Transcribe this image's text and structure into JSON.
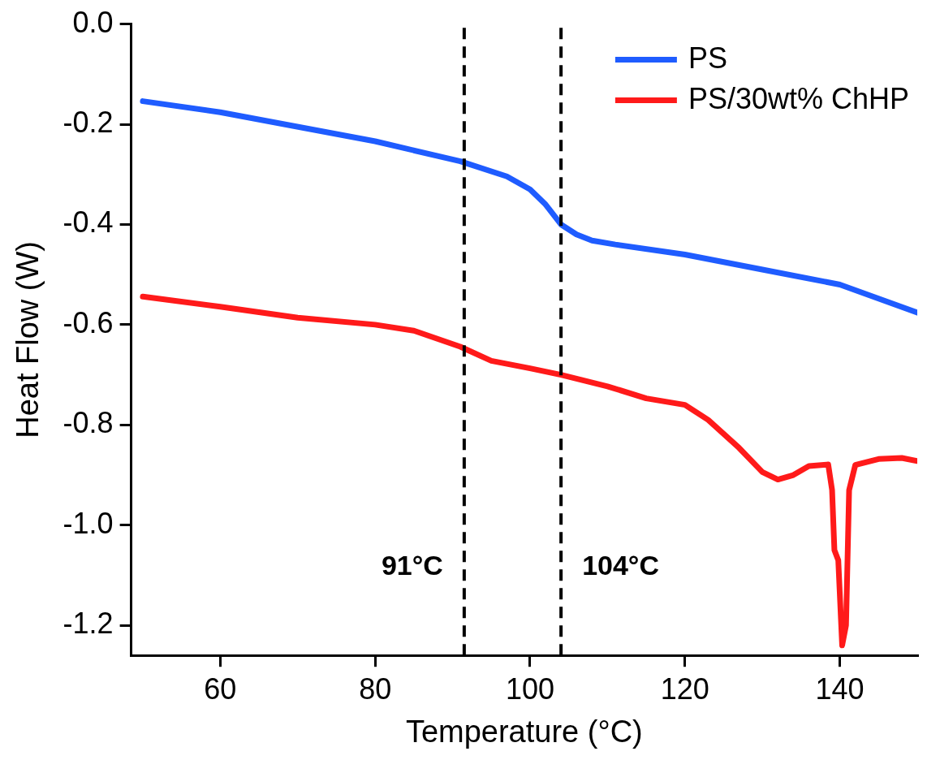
{
  "chart_data": {
    "type": "line",
    "xlabel": "Temperature (°C)",
    "ylabel": "Heat Flow (W)",
    "xlim": [
      48.5,
      150
    ],
    "xticks": [
      60,
      80,
      100,
      120,
      140
    ],
    "ylim": [
      -1.26,
      0
    ],
    "yticks": [
      {
        "value": 0,
        "label": "0.0"
      },
      {
        "value": -0.2,
        "label": "-0.2"
      },
      {
        "value": -0.4,
        "label": "-0.4"
      },
      {
        "value": -0.6,
        "label": "-0.6"
      },
      {
        "value": -0.8,
        "label": "-0.8"
      },
      {
        "value": -1.0,
        "label": "-1.0"
      },
      {
        "value": -1.2,
        "label": "-1.2"
      }
    ],
    "grid": false,
    "legend": "top right",
    "marker": "none",
    "line_style": "solid",
    "series": [
      {
        "name": "PS",
        "color": "#1f5cff",
        "x": [
          50,
          60,
          80,
          91,
          97,
          100,
          102,
          104,
          106,
          108,
          111,
          120,
          130,
          140,
          150
        ],
        "values": [
          -0.154,
          -0.176,
          -0.234,
          -0.274,
          -0.304,
          -0.33,
          -0.36,
          -0.4,
          -0.42,
          -0.432,
          -0.44,
          -0.46,
          -0.49,
          -0.52,
          -0.576
        ]
      },
      {
        "name": "PS/30wt% ChHP",
        "color": "#ff1a1a",
        "x": [
          50,
          60,
          70,
          80,
          85,
          91,
          95,
          100,
          104,
          110,
          115,
          120,
          123,
          127,
          130,
          132,
          134,
          136,
          138.5,
          139,
          139.3,
          139.8,
          140.3,
          140.8,
          141.2,
          142,
          145,
          148,
          150
        ],
        "values": [
          -0.544,
          -0.564,
          -0.586,
          -0.6,
          -0.612,
          -0.644,
          -0.672,
          -0.687,
          -0.7,
          -0.723,
          -0.747,
          -0.76,
          -0.79,
          -0.846,
          -0.894,
          -0.909,
          -0.9,
          -0.882,
          -0.879,
          -0.93,
          -1.05,
          -1.07,
          -1.24,
          -1.2,
          -0.93,
          -0.88,
          -0.868,
          -0.866,
          -0.872
        ]
      }
    ],
    "ref_lines": [
      {
        "axis": "x",
        "value": 91.5,
        "label": "91°C",
        "color": "#000000",
        "line_style": "dashed"
      },
      {
        "axis": "x",
        "value": 104,
        "label": "104°C",
        "color": "#000000",
        "line_style": "dashed"
      }
    ]
  }
}
